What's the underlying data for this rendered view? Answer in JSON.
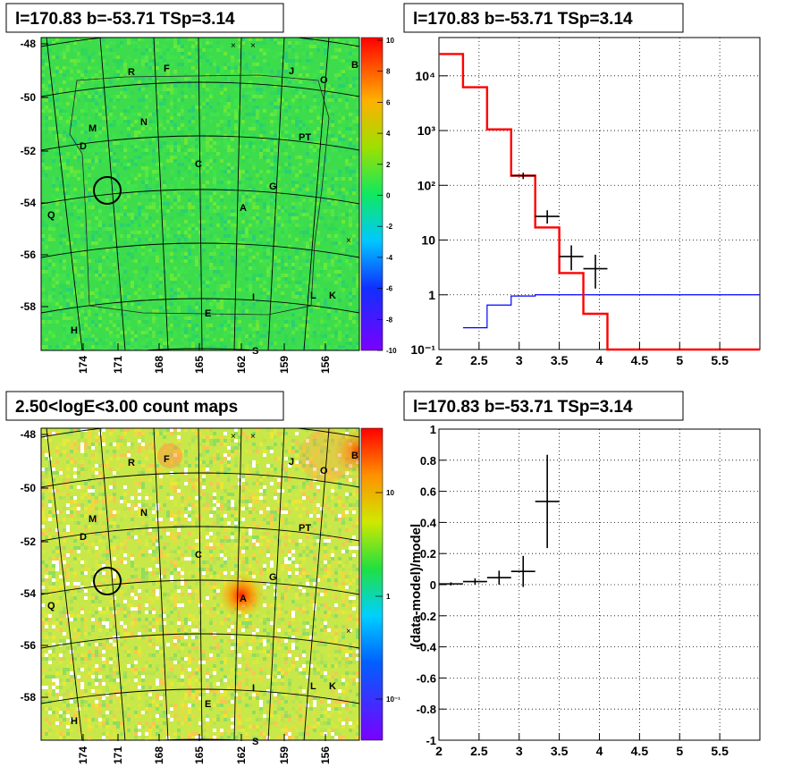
{
  "panels": {
    "tl_title": "l=170.83 b=-53.71 TSp=3.14",
    "tr_title": "l=170.83 b=-53.71 TSp=3.14",
    "bl_title": "2.50<logE<3.00 count maps",
    "br_title": "l=170.83 b=-53.71 TSp=3.14"
  },
  "colors": {
    "model": "#ff0000",
    "background_model": "#0000ff",
    "data": "#000000",
    "residual_map_base": "#33dd44",
    "count_map_base": "#c8e84a"
  },
  "sky_maps": {
    "y_ticks": [
      "-48",
      "-50",
      "-52",
      "-54",
      "-56",
      "-58"
    ],
    "x_ticks": [
      "174",
      "171",
      "168",
      "165",
      "162",
      "159",
      "156"
    ],
    "source_labels": [
      "R",
      "F",
      "J",
      "B",
      "O",
      "M",
      "N",
      "D",
      "PT",
      "C",
      "G",
      "Q",
      "A",
      "I",
      "L",
      "K",
      "E",
      "H",
      "S"
    ],
    "residual_colorbar_ticks": [
      "10",
      "8",
      "6",
      "4",
      "2",
      "0",
      "-2",
      "-4",
      "-6",
      "-8",
      "-10"
    ],
    "count_colorbar_ticks": [
      "10",
      "1",
      "10⁻¹"
    ]
  },
  "chart_data": [
    {
      "type": "line",
      "title": "l=170.83 b=-53.71 TSp=3.14",
      "yscale": "log",
      "xlim": [
        2,
        6
      ],
      "ylim": [
        0.1,
        50000
      ],
      "x_tick_labels": [
        "2",
        "2.5",
        "3",
        "3.5",
        "4",
        "4.5",
        "5",
        "5.5"
      ],
      "y_tick_labels": [
        "10⁴",
        "10³",
        "10²",
        "10",
        "1",
        "10⁻¹"
      ],
      "grid": true,
      "series": [
        {
          "style": "step",
          "bin_edges": [
            2.0,
            2.3,
            2.6,
            2.9,
            3.2,
            3.5,
            3.8,
            4.1,
            4.4,
            6.0
          ],
          "values": [
            25000,
            6200,
            1050,
            150,
            17,
            2.5,
            0.45,
            0.1,
            0.1
          ]
        },
        {
          "style": "step",
          "bin_edges": [
            2.3,
            2.6,
            2.9,
            3.2,
            6.0
          ],
          "values": [
            0.25,
            0.65,
            0.95,
            1.0
          ]
        },
        {
          "style": "errorbar",
          "x": [
            3.05,
            3.35,
            3.65,
            3.95
          ],
          "xerr": [
            0.15,
            0.15,
            0.15,
            0.15
          ],
          "y": [
            150,
            27,
            5,
            3
          ],
          "yerr_low": [
            20,
            7,
            2.2,
            1.7
          ],
          "yerr_high": [
            20,
            8,
            3,
            2.4
          ]
        }
      ]
    },
    {
      "type": "scatter",
      "title": "l=170.83 b=-53.71 TSp=3.14",
      "ylabel": "(data-model)/model",
      "xlim": [
        2,
        6
      ],
      "ylim": [
        -1,
        1
      ],
      "x_tick_labels": [
        "2",
        "2.5",
        "3",
        "3.5",
        "4",
        "4.5",
        "5",
        "5.5"
      ],
      "y_tick_labels": [
        "1",
        "0.8",
        "0.6",
        "0.4",
        "0.2",
        "0",
        "-0.2",
        "-0.4",
        "-0.6",
        "-0.8",
        "-1"
      ],
      "grid": true,
      "series": [
        {
          "style": "errorbar",
          "x": [
            2.15,
            2.45,
            2.75,
            3.05,
            3.35
          ],
          "xerr": [
            0.15,
            0.15,
            0.15,
            0.15,
            0.15
          ],
          "y": [
            0.005,
            0.02,
            0.045,
            0.085,
            0.535
          ],
          "yerr": [
            0.01,
            0.02,
            0.045,
            0.1,
            0.3
          ]
        }
      ]
    }
  ]
}
